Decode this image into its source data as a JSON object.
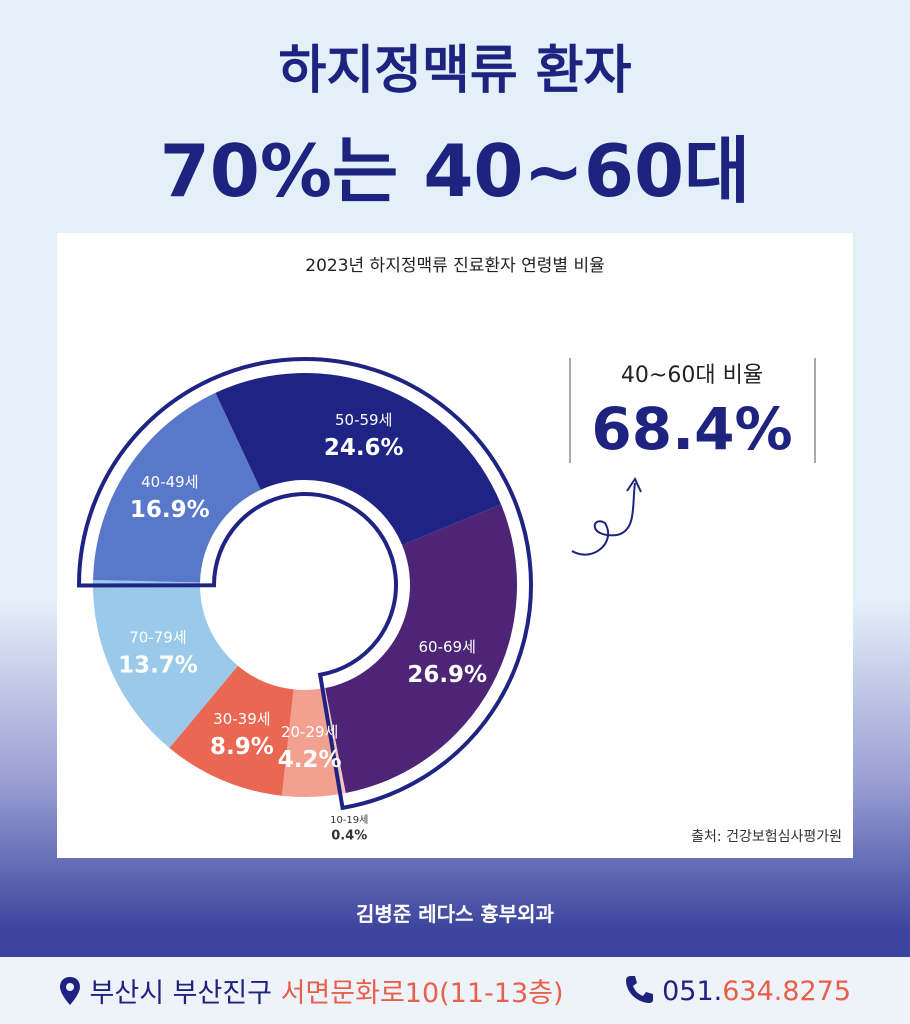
{
  "header": {
    "line1": "하지정맥류 환자",
    "line2": "70%는 40~60대"
  },
  "chart_data": {
    "type": "donut",
    "title": "2023년 하지정맥류 진료환자 연령별 비율",
    "categories": [
      "50-59세",
      "60-69세",
      "10-19세",
      "20-29세",
      "30-39세",
      "70-79세",
      "40-49세"
    ],
    "values": [
      24.6,
      26.9,
      0.4,
      4.2,
      8.9,
      13.7,
      16.9
    ],
    "value_labels": [
      "24.6%",
      "26.9%",
      "0.4%",
      "4.2%",
      "8.9%",
      "13.7%",
      "16.9%"
    ],
    "colors": [
      "#1f2383",
      "#4e2576",
      "#f6c4c0",
      "#f2a190",
      "#ea6752",
      "#9ac9ea",
      "#5a78c9"
    ],
    "callout": {
      "label": "40~60대 비율",
      "value": "68.4%"
    },
    "source": "출처: 건강보험심사평가원"
  },
  "footer": {
    "clinic": "김병준 레다스 흉부외과",
    "address": {
      "part1": "부산시 부산진구 ",
      "part2": "서면문화로10(11-13층)"
    },
    "phone": {
      "part1": "051.",
      "part2": "634.8275"
    }
  }
}
